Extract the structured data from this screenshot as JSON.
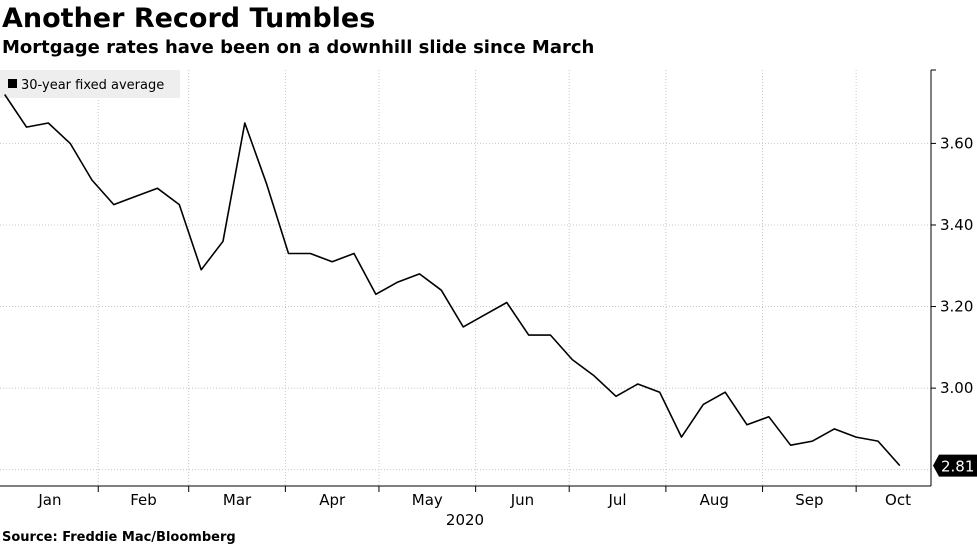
{
  "chart_data": {
    "type": "line",
    "title": "Another Record Tumbles",
    "subtitle": "Mortgage rates have been on a downhill slide since March",
    "source": "Source: Freddie Mac/Bloomberg",
    "xlabel": "2020",
    "ylabel": "",
    "x_tick_labels": [
      "Jan",
      "Feb",
      "Mar",
      "Apr",
      "May",
      "Jun",
      "Jul",
      "Aug",
      "Sep",
      "Oct"
    ],
    "y_ticks": [
      "3.60",
      "3.40",
      "3.20",
      "3.00"
    ],
    "ylim": [
      2.76,
      3.78
    ],
    "grid": true,
    "legend_position": "top-left",
    "series": [
      {
        "name": "30-year fixed average",
        "color": "#000000",
        "x": [
          "2020-01-02",
          "2020-01-09",
          "2020-01-16",
          "2020-01-23",
          "2020-01-30",
          "2020-02-06",
          "2020-02-13",
          "2020-02-20",
          "2020-02-27",
          "2020-03-05",
          "2020-03-12",
          "2020-03-19",
          "2020-03-26",
          "2020-04-02",
          "2020-04-09",
          "2020-04-16",
          "2020-04-23",
          "2020-04-30",
          "2020-05-07",
          "2020-05-14",
          "2020-05-21",
          "2020-05-28",
          "2020-06-04",
          "2020-06-11",
          "2020-06-18",
          "2020-06-25",
          "2020-07-02",
          "2020-07-09",
          "2020-07-16",
          "2020-07-23",
          "2020-07-30",
          "2020-08-06",
          "2020-08-13",
          "2020-08-20",
          "2020-08-27",
          "2020-09-03",
          "2020-09-10",
          "2020-09-17",
          "2020-09-24",
          "2020-10-01",
          "2020-10-08",
          "2020-10-15"
        ],
        "values": [
          3.72,
          3.64,
          3.65,
          3.6,
          3.51,
          3.45,
          3.47,
          3.49,
          3.45,
          3.29,
          3.36,
          3.65,
          3.5,
          3.33,
          3.33,
          3.31,
          3.33,
          3.23,
          3.26,
          3.28,
          3.24,
          3.15,
          3.18,
          3.21,
          3.13,
          3.13,
          3.07,
          3.03,
          2.98,
          3.01,
          2.99,
          2.88,
          2.96,
          2.99,
          2.91,
          2.93,
          2.86,
          2.87,
          2.9,
          2.88,
          2.87,
          2.81
        ],
        "last_value_label": "2.81"
      }
    ]
  }
}
